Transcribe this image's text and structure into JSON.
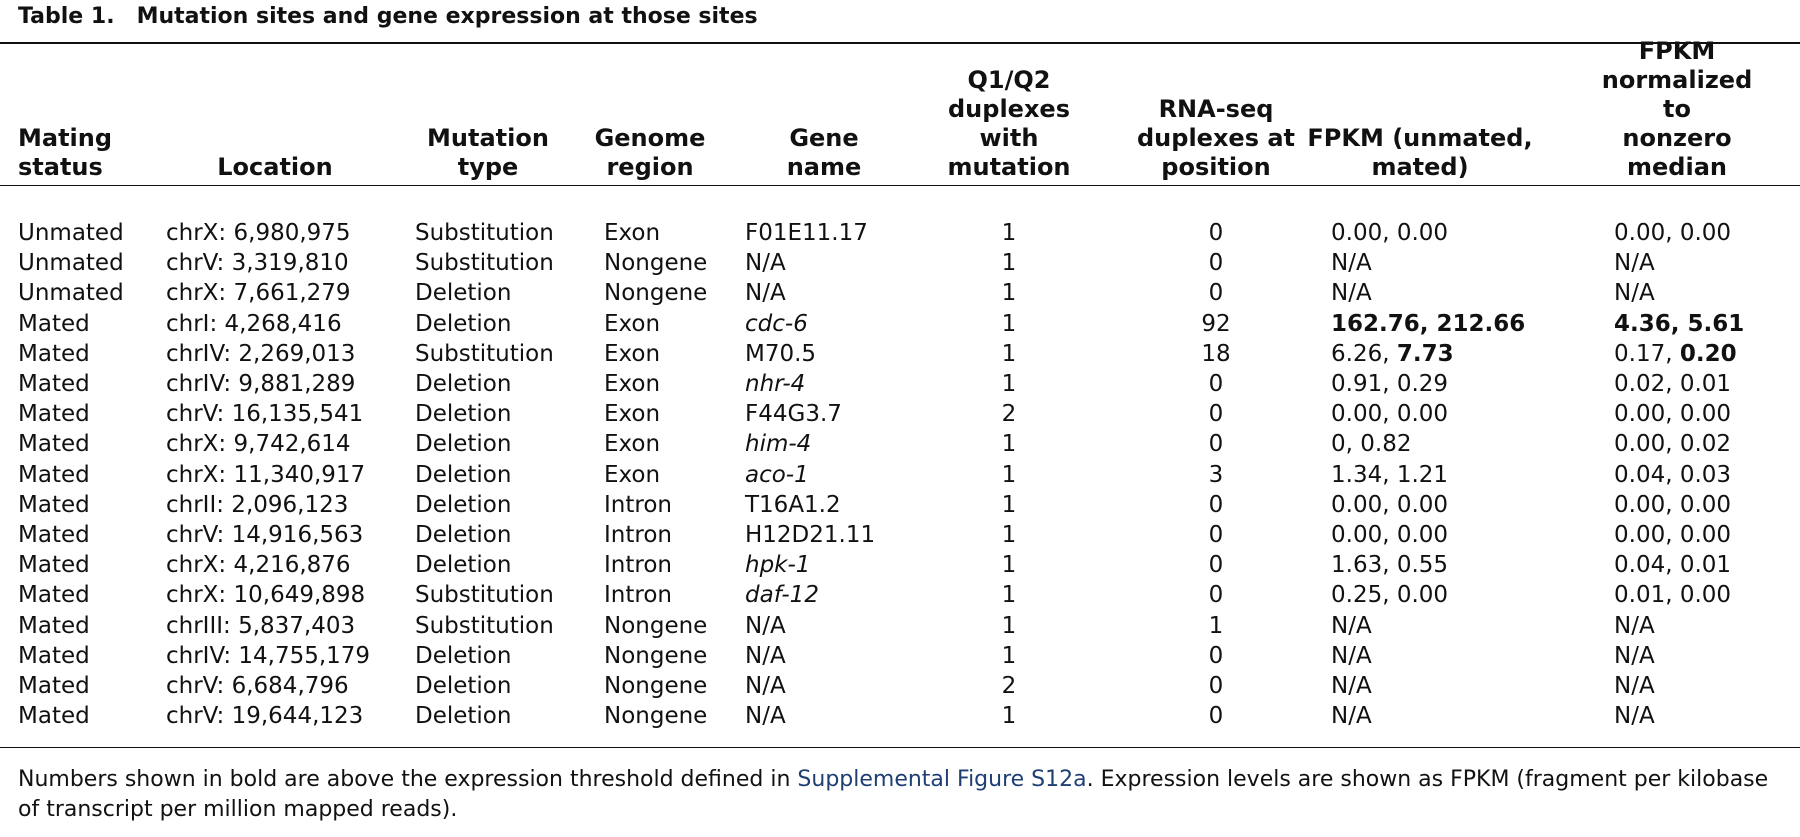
{
  "table": {
    "label": "Table 1.",
    "title": "Mutation sites and gene expression at those sites",
    "columns": [
      "Mating\nstatus",
      "Location",
      "Mutation\ntype",
      "Genome\nregion",
      "Gene\nname",
      "Q1/Q2\nduplexes\nwith\nmutation",
      "RNA-seq\nduplexes at\nposition",
      "FPKM (unmated,\nmated)",
      "FPKM\nnormalized to\nnonzero median"
    ],
    "rows": [
      {
        "status": "Unmated",
        "location": "chrX: 6,980,975",
        "type": "Substitution",
        "region": "Exon",
        "gene": "F01E11.17",
        "gene_italic": false,
        "q": "1",
        "rna": "0",
        "fpkm_a": "0.00",
        "fpkm_a_bold": false,
        "fpkm_b": "0.00",
        "fpkm_b_bold": false,
        "norm_a": "0.00",
        "norm_a_bold": false,
        "norm_b": "0.00",
        "norm_b_bold": false
      },
      {
        "status": "Unmated",
        "location": "chrV: 3,319,810",
        "type": "Substitution",
        "region": "Nongene",
        "gene": "N/A",
        "gene_italic": false,
        "q": "1",
        "rna": "0",
        "fpkm_single": "N/A",
        "norm_single": "N/A"
      },
      {
        "status": "Unmated",
        "location": "chrX: 7,661,279",
        "type": "Deletion",
        "region": "Nongene",
        "gene": "N/A",
        "gene_italic": false,
        "q": "1",
        "rna": "0",
        "fpkm_single": "N/A",
        "norm_single": "N/A"
      },
      {
        "status": "Mated",
        "location": "chrI: 4,268,416",
        "type": "Deletion",
        "region": "Exon",
        "gene": "cdc-6",
        "gene_italic": true,
        "q": "1",
        "rna": "92",
        "fpkm_a": "162.76",
        "fpkm_a_bold": true,
        "fpkm_b": "212.66",
        "fpkm_b_bold": true,
        "norm_a": "4.36",
        "norm_a_bold": true,
        "norm_b": "5.61",
        "norm_b_bold": true
      },
      {
        "status": "Mated",
        "location": "chrIV: 2,269,013",
        "type": "Substitution",
        "region": "Exon",
        "gene": "M70.5",
        "gene_italic": false,
        "q": "1",
        "rna": "18",
        "fpkm_a": "6.26",
        "fpkm_a_bold": false,
        "fpkm_b": "7.73",
        "fpkm_b_bold": true,
        "norm_a": "0.17",
        "norm_a_bold": false,
        "norm_b": "0.20",
        "norm_b_bold": true
      },
      {
        "status": "Mated",
        "location": "chrIV: 9,881,289",
        "type": "Deletion",
        "region": "Exon",
        "gene": "nhr-4",
        "gene_italic": true,
        "q": "1",
        "rna": "0",
        "fpkm_a": "0.91",
        "fpkm_a_bold": false,
        "fpkm_b": "0.29",
        "fpkm_b_bold": false,
        "norm_a": "0.02",
        "norm_a_bold": false,
        "norm_b": "0.01",
        "norm_b_bold": false
      },
      {
        "status": "Mated",
        "location": "chrV: 16,135,541",
        "type": "Deletion",
        "region": "Exon",
        "gene": "F44G3.7",
        "gene_italic": false,
        "q": "2",
        "rna": "0",
        "fpkm_a": "0.00",
        "fpkm_a_bold": false,
        "fpkm_b": "0.00",
        "fpkm_b_bold": false,
        "norm_a": "0.00",
        "norm_a_bold": false,
        "norm_b": "0.00",
        "norm_b_bold": false
      },
      {
        "status": "Mated",
        "location": "chrX: 9,742,614",
        "type": "Deletion",
        "region": "Exon",
        "gene": "him-4",
        "gene_italic": true,
        "q": "1",
        "rna": "0",
        "fpkm_a": "0",
        "fpkm_a_bold": false,
        "fpkm_b": "0.82",
        "fpkm_b_bold": false,
        "norm_a": "0.00",
        "norm_a_bold": false,
        "norm_b": "0.02",
        "norm_b_bold": false
      },
      {
        "status": "Mated",
        "location": "chrX: 11,340,917",
        "type": "Deletion",
        "region": "Exon",
        "gene": "aco-1",
        "gene_italic": true,
        "q": "1",
        "rna": "3",
        "fpkm_a": "1.34",
        "fpkm_a_bold": false,
        "fpkm_b": "1.21",
        "fpkm_b_bold": false,
        "norm_a": "0.04",
        "norm_a_bold": false,
        "norm_b": "0.03",
        "norm_b_bold": false
      },
      {
        "status": "Mated",
        "location": "chrII: 2,096,123",
        "type": "Deletion",
        "region": "Intron",
        "gene": "T16A1.2",
        "gene_italic": false,
        "q": "1",
        "rna": "0",
        "fpkm_a": "0.00",
        "fpkm_a_bold": false,
        "fpkm_b": "0.00",
        "fpkm_b_bold": false,
        "norm_a": "0.00",
        "norm_a_bold": false,
        "norm_b": "0.00",
        "norm_b_bold": false
      },
      {
        "status": "Mated",
        "location": "chrV: 14,916,563",
        "type": "Deletion",
        "region": "Intron",
        "gene": "H12D21.11",
        "gene_italic": false,
        "q": "1",
        "rna": "0",
        "fpkm_a": "0.00",
        "fpkm_a_bold": false,
        "fpkm_b": "0.00",
        "fpkm_b_bold": false,
        "norm_a": "0.00",
        "norm_a_bold": false,
        "norm_b": "0.00",
        "norm_b_bold": false
      },
      {
        "status": "Mated",
        "location": "chrX: 4,216,876",
        "type": "Deletion",
        "region": "Intron",
        "gene": "hpk-1",
        "gene_italic": true,
        "q": "1",
        "rna": "0",
        "fpkm_a": "1.63",
        "fpkm_a_bold": false,
        "fpkm_b": "0.55",
        "fpkm_b_bold": false,
        "norm_a": "0.04",
        "norm_a_bold": false,
        "norm_b": "0.01",
        "norm_b_bold": false
      },
      {
        "status": "Mated",
        "location": "chrX: 10,649,898",
        "type": "Substitution",
        "region": "Intron",
        "gene": "daf-12",
        "gene_italic": true,
        "q": "1",
        "rna": "0",
        "fpkm_a": "0.25",
        "fpkm_a_bold": false,
        "fpkm_b": "0.00",
        "fpkm_b_bold": false,
        "norm_a": "0.01",
        "norm_a_bold": false,
        "norm_b": "0.00",
        "norm_b_bold": false
      },
      {
        "status": "Mated",
        "location": "chrIII: 5,837,403",
        "type": "Substitution",
        "region": "Nongene",
        "gene": "N/A",
        "gene_italic": false,
        "q": "1",
        "rna": "1",
        "fpkm_single": "N/A",
        "norm_single": "N/A"
      },
      {
        "status": "Mated",
        "location": "chrIV: 14,755,179",
        "type": "Deletion",
        "region": "Nongene",
        "gene": "N/A",
        "gene_italic": false,
        "q": "1",
        "rna": "0",
        "fpkm_single": "N/A",
        "norm_single": "N/A"
      },
      {
        "status": "Mated",
        "location": "chrV: 6,684,796",
        "type": "Deletion",
        "region": "Nongene",
        "gene": "N/A",
        "gene_italic": false,
        "q": "2",
        "rna": "0",
        "fpkm_single": "N/A",
        "norm_single": "N/A"
      },
      {
        "status": "Mated",
        "location": "chrV: 19,644,123",
        "type": "Deletion",
        "region": "Nongene",
        "gene": "N/A",
        "gene_italic": false,
        "q": "1",
        "rna": "0",
        "fpkm_single": "N/A",
        "norm_single": "N/A"
      }
    ]
  },
  "footnote": {
    "before": "Numbers shown in bold are above the expression threshold defined in ",
    "link": "Supplemental Figure S12a",
    "after": ". Expression levels are shown as FPKM (fragment per kilobase of transcript per million mapped reads).",
    "link_color": "#1f3f73"
  }
}
